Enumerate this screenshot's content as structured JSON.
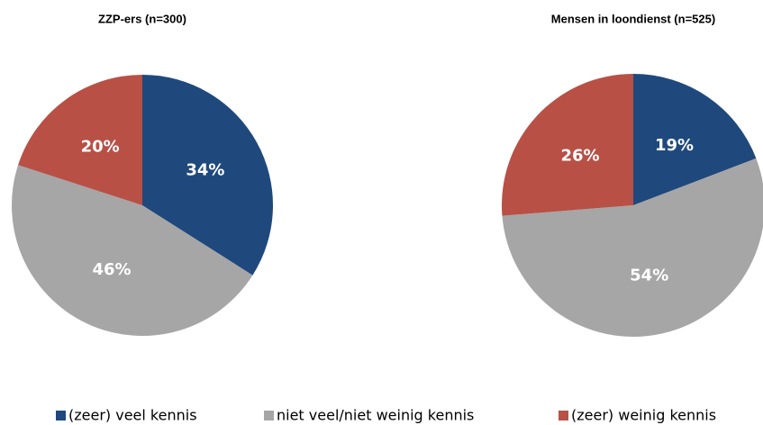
{
  "chart_data": [
    {
      "type": "pie",
      "title": "ZZP-ers (n=300)",
      "categories": [
        "(zeer) veel kennis",
        "niet veel/niet weinig kennis",
        "(zeer) weinig kennis"
      ],
      "colors": [
        "#1f497d",
        "#a6a6a6",
        "#b85046"
      ],
      "values": [
        34,
        46,
        20
      ],
      "value_labels": [
        "34%",
        "46%",
        "20%"
      ]
    },
    {
      "type": "pie",
      "title": "Mensen in loondienst (n=525)",
      "values": [
        19,
        54,
        26
      ],
      "value_labels": [
        "19%",
        "54%",
        "26%"
      ]
    }
  ]
}
